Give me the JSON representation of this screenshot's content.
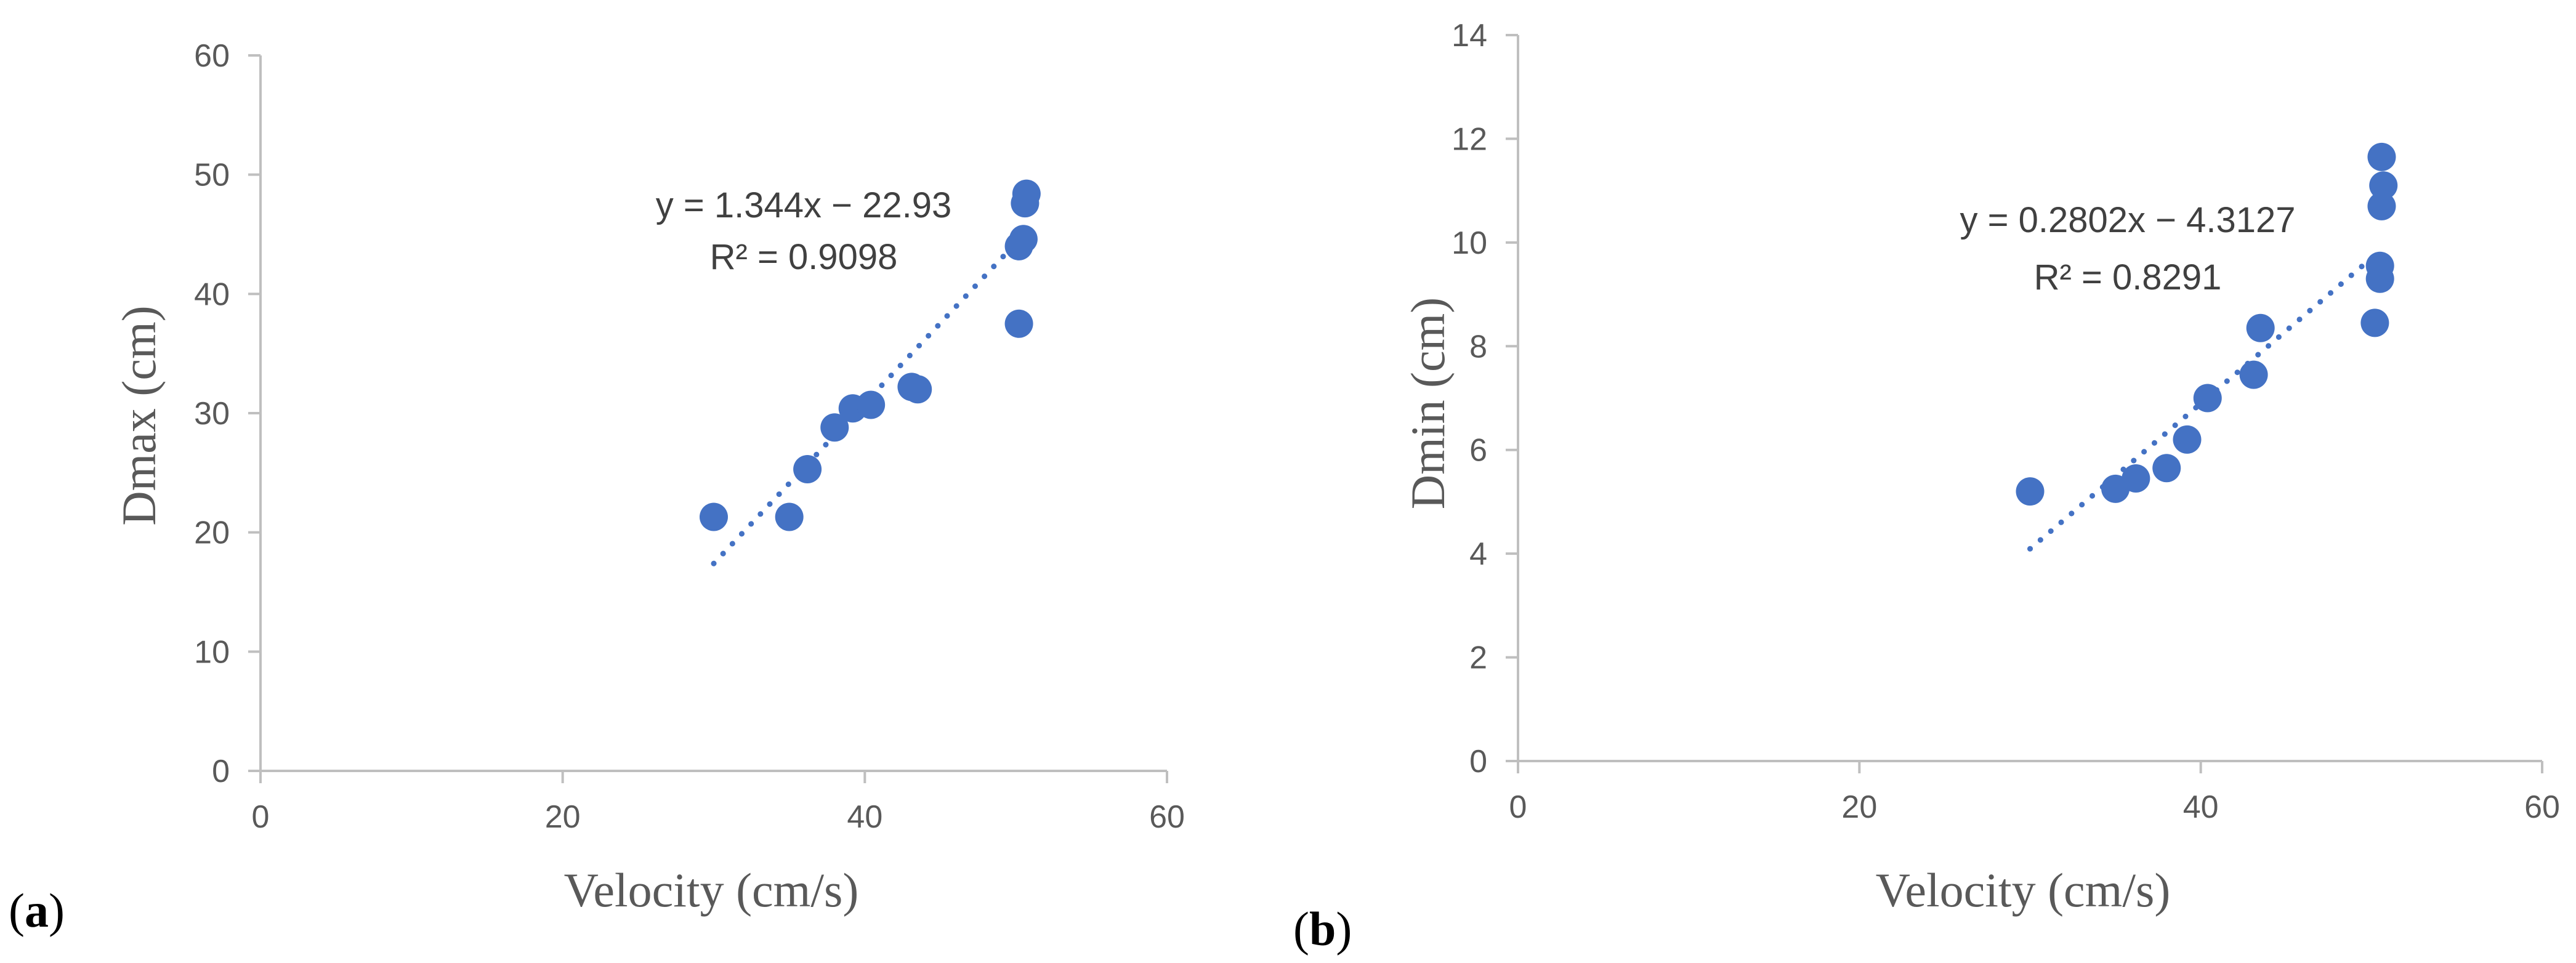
{
  "colors": {
    "marker": "#4472C4",
    "axis": "#BFBFBF",
    "text": "#595959",
    "equation": "#404040"
  },
  "chart_data": [
    {
      "panel": "(a)",
      "panel_letter": "a",
      "type": "scatter",
      "xlabel": "Velocity (cm/s)",
      "ylabel": "Dmax (cm)",
      "xlim": [
        0,
        60
      ],
      "ylim": [
        0,
        60
      ],
      "xticks": [
        0,
        20,
        40,
        60
      ],
      "yticks": [
        0,
        10,
        20,
        30,
        40,
        50,
        60
      ],
      "xtick_labels": [
        "0",
        "20",
        "40",
        "60"
      ],
      "ytick_labels": [
        "0",
        "10",
        "20",
        "30",
        "40",
        "50",
        "60"
      ],
      "grid": false,
      "points": [
        [
          30.0,
          21.3
        ],
        [
          35.0,
          21.3
        ],
        [
          36.2,
          25.3
        ],
        [
          38.0,
          28.8
        ],
        [
          39.2,
          30.4
        ],
        [
          40.4,
          30.7
        ],
        [
          43.1,
          32.2
        ],
        [
          43.5,
          32.0
        ],
        [
          50.2,
          37.5
        ],
        [
          50.2,
          44.0
        ],
        [
          50.5,
          44.6
        ],
        [
          50.6,
          47.6
        ],
        [
          50.7,
          48.4
        ]
      ],
      "trendline": {
        "slope": 1.344,
        "intercept": -22.93,
        "x_range": [
          30,
          50.7
        ],
        "style": "dotted"
      },
      "equation": "y = 1.344x − 22.93",
      "r2": "R² = 0.9098"
    },
    {
      "panel": "(b)",
      "panel_letter": "b",
      "type": "scatter",
      "xlabel": "Velocity (cm/s)",
      "ylabel": "Dmin (cm)",
      "xlim": [
        0,
        60
      ],
      "ylim": [
        0,
        14
      ],
      "xticks": [
        0,
        20,
        40,
        60
      ],
      "yticks": [
        0,
        2,
        4,
        6,
        8,
        10,
        12,
        14
      ],
      "xtick_labels": [
        "0",
        "20",
        "40",
        "60"
      ],
      "ytick_labels": [
        "0",
        "2",
        "4",
        "6",
        "8",
        "10",
        "12",
        "14"
      ],
      "grid": false,
      "points": [
        [
          30.0,
          5.2
        ],
        [
          35.0,
          5.25
        ],
        [
          36.2,
          5.45
        ],
        [
          38.0,
          5.65
        ],
        [
          39.2,
          6.2
        ],
        [
          40.4,
          7.0
        ],
        [
          43.1,
          7.45
        ],
        [
          43.5,
          8.35
        ],
        [
          50.2,
          8.45
        ],
        [
          50.5,
          9.3
        ],
        [
          50.5,
          9.55
        ],
        [
          50.6,
          10.7
        ],
        [
          50.7,
          11.1
        ],
        [
          50.6,
          11.65
        ]
      ],
      "trendline": {
        "slope": 0.2802,
        "intercept": -4.3127,
        "x_range": [
          30,
          50.6
        ],
        "style": "dotted"
      },
      "equation": "y = 0.2802x − 4.3127",
      "r2": "R² = 0.8291"
    }
  ]
}
